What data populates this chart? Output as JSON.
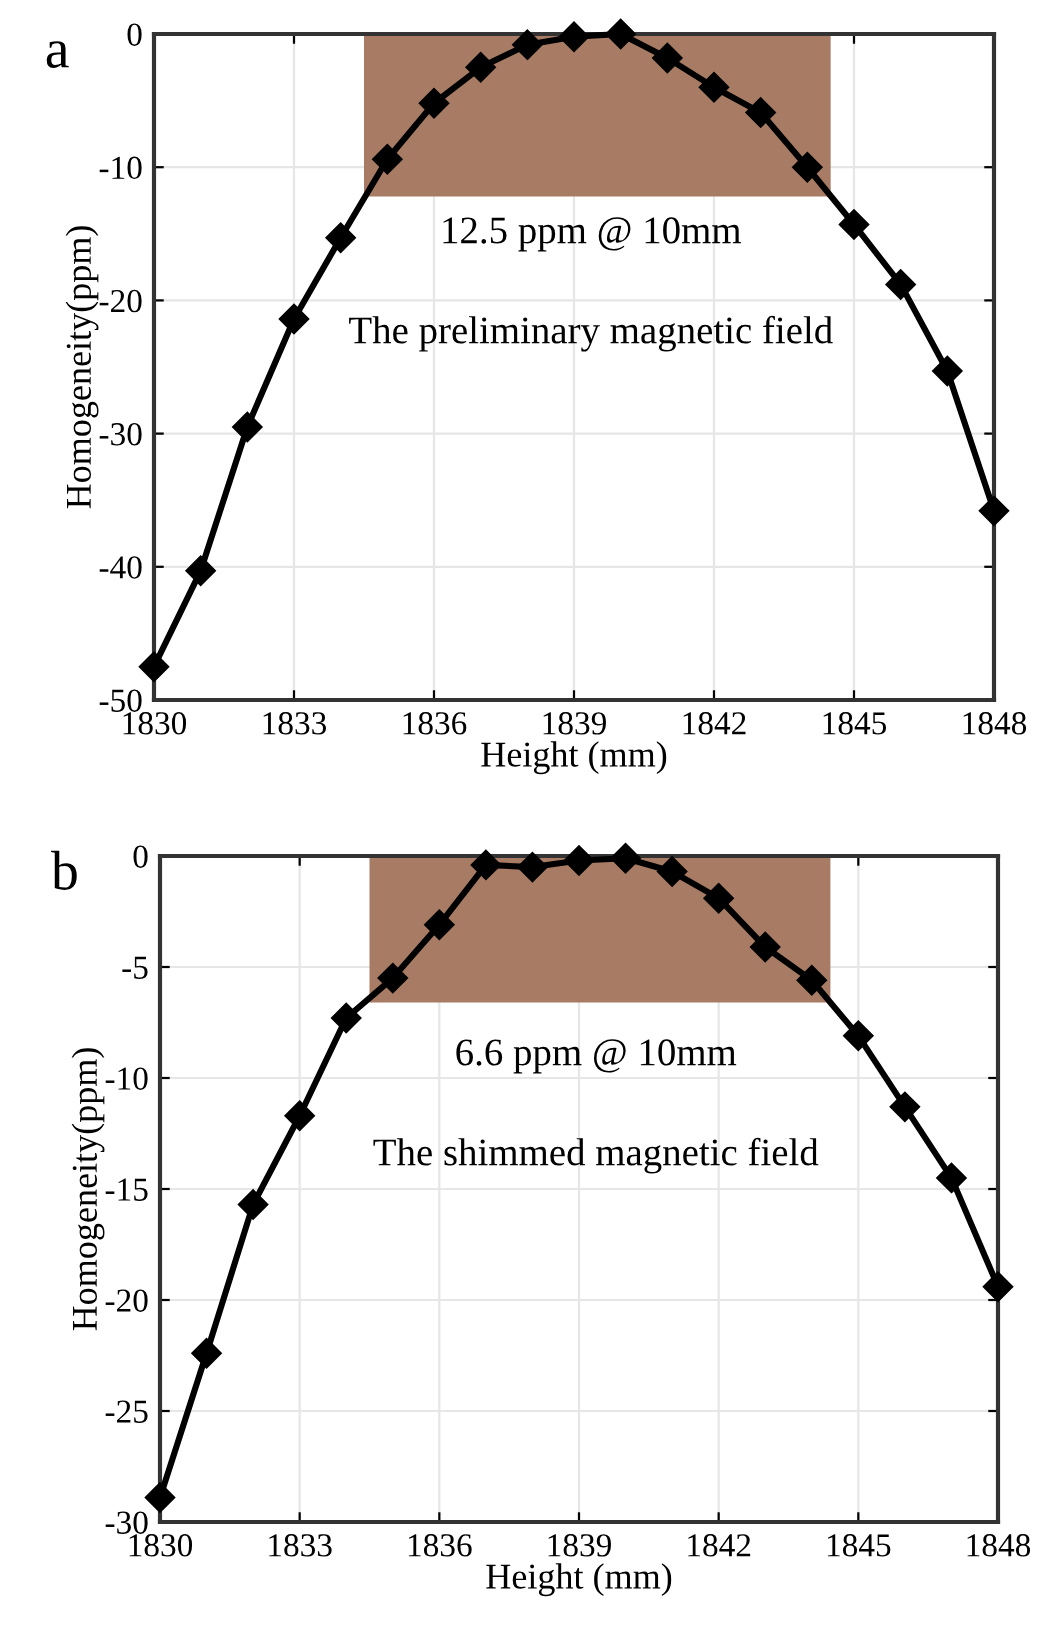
{
  "chart_data": [
    {
      "type": "line",
      "xlabel": "Height (mm)",
      "ylabel": "Homogeneity(ppm)",
      "annotations": [
        "a",
        "12.5 ppm @ 10mm",
        "The preliminary magnetic field"
      ],
      "series": [
        {
          "type": "area",
          "color": "#a87c64",
          "x": [
            1834.5,
            1844.5
          ],
          "values": [
            -12.2,
            -12.2
          ]
        },
        {
          "color": "#000000",
          "marker": "diamond",
          "x": [
            1830,
            1831,
            1832,
            1833,
            1834,
            1835,
            1836,
            1837,
            1838,
            1839,
            1840,
            1841,
            1842,
            1843,
            1844,
            1845,
            1846,
            1847,
            1848
          ],
          "values": [
            -47.5,
            -40.3,
            -29.5,
            -21.4,
            -15.3,
            -9.4,
            -5.2,
            -2.5,
            -0.8,
            -0.2,
            0,
            -1.8,
            -4.0,
            -5.9,
            -10.0,
            -14.3,
            -18.8,
            -25.3,
            -35.8
          ]
        }
      ],
      "xlim": [
        1830,
        1848
      ],
      "xticks": [
        1830,
        1833,
        1836,
        1839,
        1842,
        1845,
        1848
      ],
      "ylim": [
        -50,
        0
      ],
      "yticks": [
        -50,
        -40,
        -30,
        -20,
        -10,
        0
      ],
      "grid": true,
      "line_style": "solid"
    },
    {
      "type": "line",
      "xlabel": "Height (mm)",
      "ylabel": "Homogeneity(ppm)",
      "annotations": [
        "b",
        "6.6 ppm @ 10mm",
        "The shimmed magnetic field"
      ],
      "series": [
        {
          "type": "area",
          "color": "#a87c64",
          "x": [
            1834.5,
            1844.4
          ],
          "values": [
            -6.6,
            -6.6
          ]
        },
        {
          "color": "#000000",
          "marker": "diamond",
          "x": [
            1830,
            1831,
            1832,
            1833,
            1834,
            1835,
            1836,
            1837,
            1838,
            1839,
            1840,
            1841,
            1842,
            1843,
            1844,
            1845,
            1846,
            1847,
            1848
          ],
          "values": [
            -28.9,
            -22.4,
            -15.7,
            -11.7,
            -7.3,
            -5.5,
            -3.1,
            -0.4,
            -0.5,
            -0.2,
            -0.1,
            -0.7,
            -1.9,
            -4.1,
            -5.6,
            -8.1,
            -11.3,
            -14.5,
            -19.4
          ]
        }
      ],
      "xlim": [
        1830,
        1848
      ],
      "xticks": [
        1830,
        1833,
        1836,
        1839,
        1842,
        1845,
        1848
      ],
      "ylim": [
        -30,
        0
      ],
      "yticks": [
        -30,
        -25,
        -20,
        -15,
        -10,
        -5,
        0
      ],
      "grid": true,
      "line_style": "solid"
    }
  ]
}
